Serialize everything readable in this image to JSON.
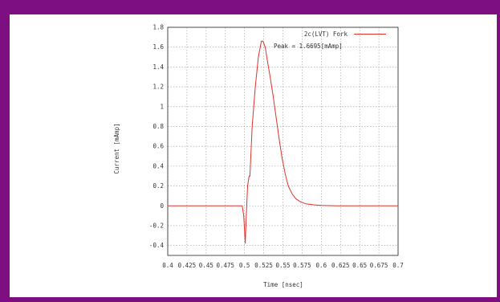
{
  "colors": {
    "frame": "#7d0f82",
    "panel": "#ffffff",
    "grid": "#9a9a9a",
    "series": "#e0302a",
    "axis": "#222222"
  },
  "chart_data": {
    "type": "line",
    "title": "",
    "xlabel": "Time [nsec]",
    "ylabel": "Current [mAmp]",
    "xlim": [
      0.4,
      0.7
    ],
    "ylim": [
      -0.5,
      1.8
    ],
    "xticks": [
      "0.4",
      "0.425",
      "0.45",
      "0.475",
      "0.5",
      "0.525",
      "0.55",
      "0.575",
      "0.6",
      "0.625",
      "0.65",
      "0.675",
      "0.7"
    ],
    "yticks": [
      "-0.4",
      "-0.2",
      "0",
      "0.2",
      "0.4",
      "0.6",
      "0.8",
      "1",
      "1.2",
      "1.4",
      "1.6",
      "1.8"
    ],
    "grid": true,
    "legend": {
      "placement": "top-right",
      "entries": [
        "2c(LVT) Fork"
      ]
    },
    "annotations": [
      {
        "text": "Peak = 1.6695[mAmp]"
      }
    ],
    "series": [
      {
        "name": "2c(LVT) Fork",
        "x": [
          0.4,
          0.497,
          0.499,
          0.501,
          0.502,
          0.504,
          0.506,
          0.507,
          0.51,
          0.514,
          0.518,
          0.522,
          0.524,
          0.527,
          0.53,
          0.533,
          0.537,
          0.541,
          0.545,
          0.549,
          0.553,
          0.557,
          0.562,
          0.567,
          0.573,
          0.58,
          0.59,
          0.6,
          0.62,
          0.7
        ],
        "y": [
          0,
          0,
          -0.1,
          -0.38,
          -0.15,
          0.2,
          0.3,
          0.3,
          0.8,
          1.2,
          1.5,
          1.66,
          1.66,
          1.6,
          1.45,
          1.32,
          1.12,
          0.9,
          0.68,
          0.48,
          0.32,
          0.2,
          0.12,
          0.07,
          0.04,
          0.02,
          0.01,
          0.004,
          0,
          0
        ]
      }
    ]
  }
}
